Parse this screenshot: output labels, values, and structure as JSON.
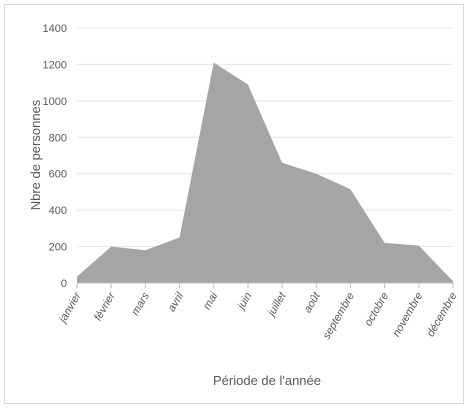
{
  "chart_data": {
    "type": "area",
    "title": "",
    "xlabel": "Période de l'année",
    "ylabel": "Nbre de personnes",
    "categories": [
      "janvier",
      "février",
      "mars",
      "avril",
      "mai",
      "juin",
      "juillet",
      "août",
      "septembre",
      "octobre",
      "novembre",
      "décembre"
    ],
    "values": [
      35,
      200,
      180,
      250,
      1210,
      1090,
      660,
      600,
      515,
      220,
      205,
      10
    ],
    "ylim": [
      0,
      1400
    ],
    "yticks": [
      0,
      200,
      400,
      600,
      800,
      1000,
      1200,
      1400
    ],
    "grid": true,
    "colors": {
      "area": "#a5a5a5",
      "grid": "#e4e4e4",
      "axis": "#bfbfbf",
      "text": "#595959"
    }
  }
}
